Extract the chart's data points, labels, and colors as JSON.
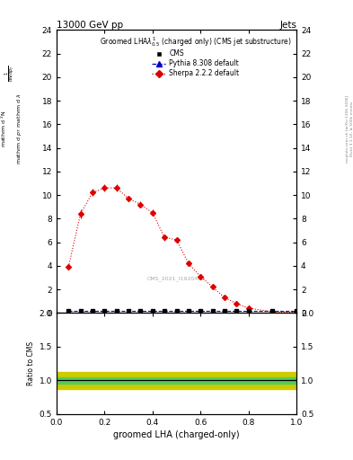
{
  "title_top": "13000 GeV pp",
  "title_right": "Jets",
  "legend_title": "Groomed LHA$\\lambda^1_{0.5}$ (charged only) (CMS jet substructure)",
  "xlabel": "groomed LHA (charged-only)",
  "ylabel_main_lines": [
    "mathrm d$^2$N",
    "mathrm d p$_\\mathrm{T}$ mathrm d lambda",
    "1",
    "mathrm d N / mathrm d p$_\\mathrm{T}$"
  ],
  "ylabel_ratio": "Ratio to CMS",
  "right_label_top": "mcplots.cern.ch [arXiv:1306.3436]",
  "right_label_bot": "Rivet 3.1.10, ≥ 500k events",
  "watermark": "CMS_2021_I1920483",
  "sherpa_x": [
    0.05,
    0.1,
    0.15,
    0.2,
    0.25,
    0.3,
    0.35,
    0.4,
    0.45,
    0.5,
    0.55,
    0.6,
    0.65,
    0.7,
    0.75,
    0.8,
    0.9,
    1.0
  ],
  "sherpa_y": [
    3.9,
    8.4,
    10.2,
    10.6,
    10.6,
    9.7,
    9.2,
    8.5,
    6.4,
    6.2,
    4.2,
    3.1,
    2.2,
    1.3,
    0.8,
    0.4,
    0.1,
    0.05
  ],
  "sherpa_yerr": [
    0.25,
    0.35,
    0.3,
    0.3,
    0.3,
    0.25,
    0.25,
    0.25,
    0.25,
    0.25,
    0.2,
    0.2,
    0.18,
    0.15,
    0.12,
    0.1,
    0.05,
    0.03
  ],
  "cms_x": [
    0.05,
    0.1,
    0.15,
    0.2,
    0.25,
    0.3,
    0.35,
    0.4,
    0.45,
    0.5,
    0.55,
    0.6,
    0.65,
    0.7,
    0.75,
    0.8,
    0.9,
    1.0
  ],
  "cms_y": [
    0.15,
    0.15,
    0.15,
    0.15,
    0.15,
    0.15,
    0.15,
    0.15,
    0.15,
    0.15,
    0.15,
    0.15,
    0.15,
    0.15,
    0.15,
    0.15,
    0.15,
    0.15
  ],
  "pythia_x": [
    0.05,
    0.1,
    0.15,
    0.2,
    0.25,
    0.3,
    0.35,
    0.4,
    0.45,
    0.5,
    0.55,
    0.6,
    0.65,
    0.7,
    0.75,
    0.8,
    0.9,
    1.0
  ],
  "pythia_y": [
    0.15,
    0.15,
    0.15,
    0.15,
    0.15,
    0.15,
    0.15,
    0.15,
    0.15,
    0.15,
    0.15,
    0.15,
    0.15,
    0.15,
    0.15,
    0.15,
    0.15,
    0.15
  ],
  "ratio_x": [
    0.0,
    0.05,
    0.1,
    0.15,
    0.2,
    0.25,
    0.3,
    0.35,
    0.4,
    0.45,
    0.5,
    0.55,
    0.6,
    0.65,
    0.7,
    0.75,
    0.8,
    0.85,
    0.9,
    0.95,
    1.0
  ],
  "ratio_green_err": 0.05,
  "ratio_yellow_err": 0.13,
  "ylim_main": [
    0,
    24
  ],
  "ylim_ratio": [
    0.5,
    2.0
  ],
  "xlim": [
    0,
    1
  ],
  "sherpa_color": "#dd0000",
  "pythia_color": "#0000cc",
  "cms_color": "#000000",
  "green_band_color": "#55cc55",
  "yellow_band_color": "#cccc00",
  "bg_color": "#ffffff"
}
